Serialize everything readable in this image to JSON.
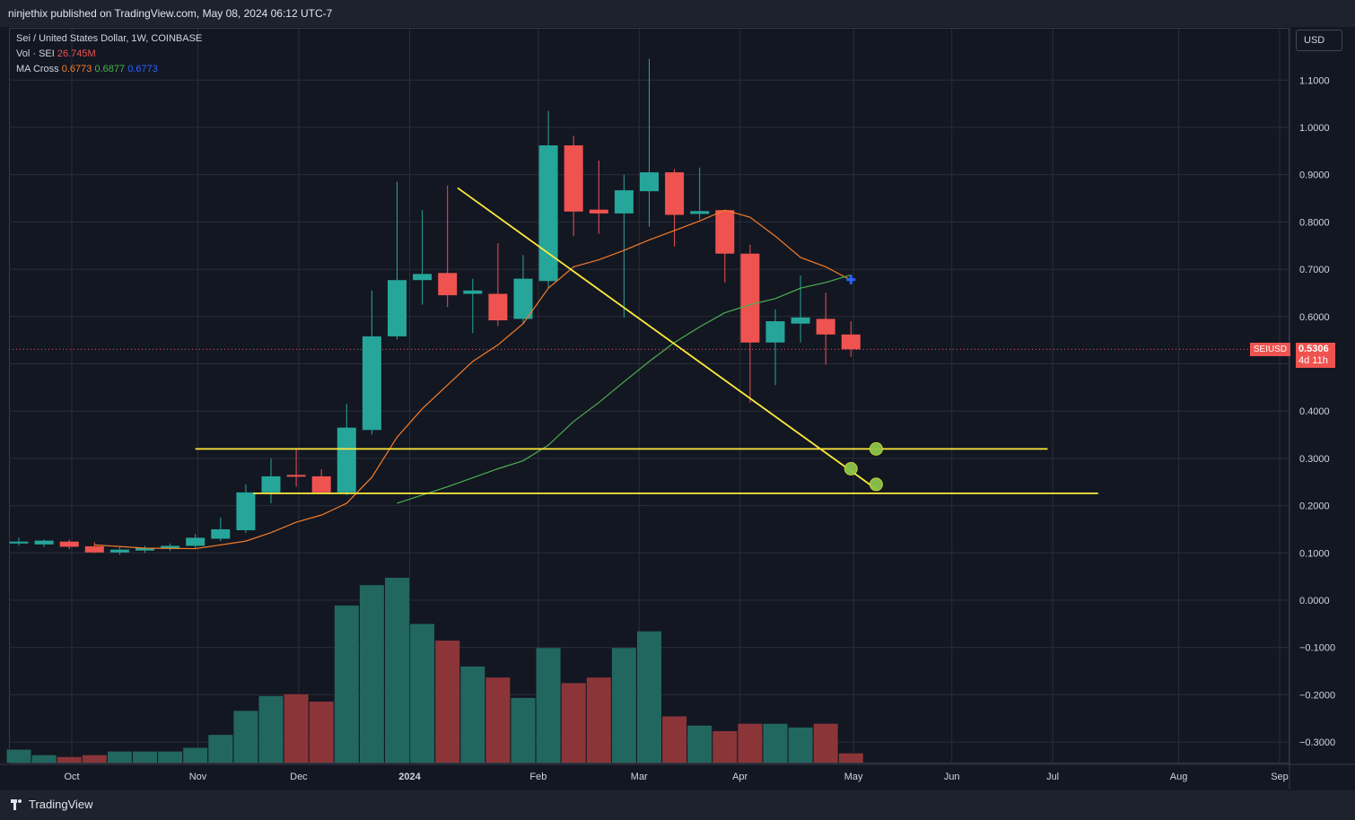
{
  "header": {
    "publisher_text": "ninjethix published on TradingView.com, May 08, 2024 06:12 UTC-7"
  },
  "legend": {
    "symbol_line": "Sei / United States Dollar, 1W, COINBASE",
    "vol_label": "Vol · SEI",
    "vol_value": "26.745M",
    "ma_label": "MA Cross",
    "ma_values": [
      "0.6773",
      "0.6877",
      "0.6773"
    ]
  },
  "price_scale": {
    "currency_button": "USD",
    "symbol_tag": "SEIUSD",
    "last_price": "0.5306",
    "countdown": "4d 11h"
  },
  "footer": {
    "brand": "TradingView"
  },
  "colors": {
    "background": "#131722",
    "up_candle": "#26a69a",
    "down_candle": "#ef5350",
    "volume_up": "#22675f",
    "volume_down": "#8b3539",
    "ma_fast": "#f57c28",
    "ma_slow": "#4caf50",
    "annotation": "#ffeb3b",
    "annotation_marker": "#8bc34a",
    "cross_marker": "#2962ff"
  },
  "chart_data": {
    "type": "candlestick",
    "title": "Sei / United States Dollar, 1W, COINBASE",
    "y_axis": {
      "ticks": [
        "1.1000",
        "1.0000",
        "0.9000",
        "0.8000",
        "0.7000",
        "0.6000",
        "0.5000",
        "0.4000",
        "0.3000",
        "0.2000",
        "0.1000",
        "0.0000",
        "−0.1000",
        "−0.2000",
        "−0.3000"
      ],
      "tick_values": [
        1.1,
        1.0,
        0.9,
        0.8,
        0.7,
        0.6,
        0.5,
        0.4,
        0.3,
        0.2,
        0.1,
        0.0,
        -0.1,
        -0.2,
        -0.3
      ],
      "range": [
        -0.35,
        1.2
      ]
    },
    "x_axis": {
      "labels": [
        "Oct",
        "Nov",
        "Dec",
        "2024",
        "Feb",
        "Mar",
        "Apr",
        "May",
        "Jun",
        "Jul",
        "Aug",
        "Sep"
      ],
      "label_week_index": [
        2.1,
        7.1,
        11.1,
        15.5,
        20.6,
        24.6,
        28.6,
        33.1,
        37.0,
        41.0,
        46.0,
        50.0
      ],
      "bold": [
        "2024"
      ]
    },
    "candles": [
      {
        "open": 0.12,
        "high": 0.132,
        "low": 0.115,
        "close": 0.124
      },
      {
        "open": 0.118,
        "high": 0.128,
        "low": 0.113,
        "close": 0.126
      },
      {
        "open": 0.124,
        "high": 0.128,
        "low": 0.108,
        "close": 0.113
      },
      {
        "open": 0.114,
        "high": 0.123,
        "low": 0.1,
        "close": 0.101
      },
      {
        "open": 0.101,
        "high": 0.112,
        "low": 0.096,
        "close": 0.107
      },
      {
        "open": 0.105,
        "high": 0.115,
        "low": 0.1,
        "close": 0.111
      },
      {
        "open": 0.109,
        "high": 0.12,
        "low": 0.104,
        "close": 0.115
      },
      {
        "open": 0.115,
        "high": 0.14,
        "low": 0.11,
        "close": 0.132
      },
      {
        "open": 0.13,
        "high": 0.175,
        "low": 0.125,
        "close": 0.15
      },
      {
        "open": 0.148,
        "high": 0.245,
        "low": 0.142,
        "close": 0.228
      },
      {
        "open": 0.228,
        "high": 0.3,
        "low": 0.205,
        "close": 0.262
      },
      {
        "open": 0.265,
        "high": 0.32,
        "low": 0.24,
        "close": 0.262
      },
      {
        "open": 0.262,
        "high": 0.277,
        "low": 0.235,
        "close": 0.228
      },
      {
        "open": 0.228,
        "high": 0.415,
        "low": 0.222,
        "close": 0.365
      },
      {
        "open": 0.36,
        "high": 0.655,
        "low": 0.35,
        "close": 0.558
      },
      {
        "open": 0.558,
        "high": 0.885,
        "low": 0.552,
        "close": 0.677
      },
      {
        "open": 0.677,
        "high": 0.825,
        "low": 0.625,
        "close": 0.69
      },
      {
        "open": 0.692,
        "high": 0.877,
        "low": 0.62,
        "close": 0.645
      },
      {
        "open": 0.648,
        "high": 0.68,
        "low": 0.565,
        "close": 0.655
      },
      {
        "open": 0.648,
        "high": 0.755,
        "low": 0.58,
        "close": 0.592
      },
      {
        "open": 0.595,
        "high": 0.73,
        "low": 0.585,
        "close": 0.68
      },
      {
        "open": 0.675,
        "high": 1.035,
        "low": 0.66,
        "close": 0.962
      },
      {
        "open": 0.962,
        "high": 0.982,
        "low": 0.77,
        "close": 0.822
      },
      {
        "open": 0.826,
        "high": 0.93,
        "low": 0.775,
        "close": 0.818
      },
      {
        "open": 0.818,
        "high": 0.9,
        "low": 0.598,
        "close": 0.867
      },
      {
        "open": 0.865,
        "high": 1.145,
        "low": 0.79,
        "close": 0.905
      },
      {
        "open": 0.905,
        "high": 0.912,
        "low": 0.748,
        "close": 0.815
      },
      {
        "open": 0.817,
        "high": 0.915,
        "low": 0.805,
        "close": 0.823
      },
      {
        "open": 0.825,
        "high": 0.825,
        "low": 0.672,
        "close": 0.733
      },
      {
        "open": 0.733,
        "high": 0.752,
        "low": 0.418,
        "close": 0.545
      },
      {
        "open": 0.545,
        "high": 0.615,
        "low": 0.455,
        "close": 0.59
      },
      {
        "open": 0.585,
        "high": 0.687,
        "low": 0.545,
        "close": 0.598
      },
      {
        "open": 0.595,
        "high": 0.65,
        "low": 0.498,
        "close": 0.562
      },
      {
        "open": 0.562,
        "high": 0.59,
        "low": 0.515,
        "close": 0.5306
      }
    ],
    "volume_relative": [
      0.07,
      0.04,
      0.03,
      0.04,
      0.06,
      0.06,
      0.06,
      0.08,
      0.15,
      0.28,
      0.36,
      0.37,
      0.33,
      0.85,
      0.96,
      1.0,
      0.75,
      0.66,
      0.52,
      0.46,
      0.35,
      0.62,
      0.43,
      0.46,
      0.62,
      0.71,
      0.25,
      0.2,
      0.17,
      0.21,
      0.21,
      0.19,
      0.21,
      0.05
    ],
    "ma_fast": [
      [
        3,
        0.117
      ],
      [
        5,
        0.11
      ],
      [
        7,
        0.109
      ],
      [
        9,
        0.125
      ],
      [
        10,
        0.143
      ],
      [
        11,
        0.165
      ],
      [
        12,
        0.18
      ],
      [
        13,
        0.205
      ],
      [
        14,
        0.26
      ],
      [
        15,
        0.345
      ],
      [
        16,
        0.405
      ],
      [
        17,
        0.455
      ],
      [
        18,
        0.505
      ],
      [
        19,
        0.54
      ],
      [
        20,
        0.585
      ],
      [
        21,
        0.66
      ],
      [
        22,
        0.705
      ],
      [
        23,
        0.72
      ],
      [
        24,
        0.74
      ],
      [
        25,
        0.762
      ],
      [
        26,
        0.782
      ],
      [
        27,
        0.802
      ],
      [
        28,
        0.825
      ],
      [
        29,
        0.81
      ],
      [
        30,
        0.77
      ],
      [
        31,
        0.725
      ],
      [
        32,
        0.705
      ],
      [
        33,
        0.677
      ]
    ],
    "ma_slow": [
      [
        15,
        0.205
      ],
      [
        17,
        0.24
      ],
      [
        19,
        0.278
      ],
      [
        20,
        0.295
      ],
      [
        21,
        0.328
      ],
      [
        22,
        0.378
      ],
      [
        23,
        0.418
      ],
      [
        24,
        0.462
      ],
      [
        25,
        0.505
      ],
      [
        26,
        0.545
      ],
      [
        27,
        0.578
      ],
      [
        28,
        0.608
      ],
      [
        29,
        0.625
      ],
      [
        30,
        0.638
      ],
      [
        31,
        0.66
      ],
      [
        32,
        0.672
      ],
      [
        33,
        0.688
      ]
    ],
    "cross_marker": {
      "x": 33,
      "y": 0.678
    },
    "current_price": 0.5306,
    "drawings": {
      "trendline": {
        "x1": 17.4,
        "y1": 0.872,
        "x2": 34.0,
        "y2": 0.235
      },
      "support_upper": {
        "x1": 7.0,
        "x2": 40.8,
        "y": 0.32
      },
      "support_lower": {
        "x1": 9.3,
        "x2": 42.8,
        "y": 0.226
      },
      "markers": [
        [
          34.0,
          0.32
        ],
        [
          33.0,
          0.278
        ],
        [
          34.0,
          0.245
        ]
      ]
    }
  }
}
